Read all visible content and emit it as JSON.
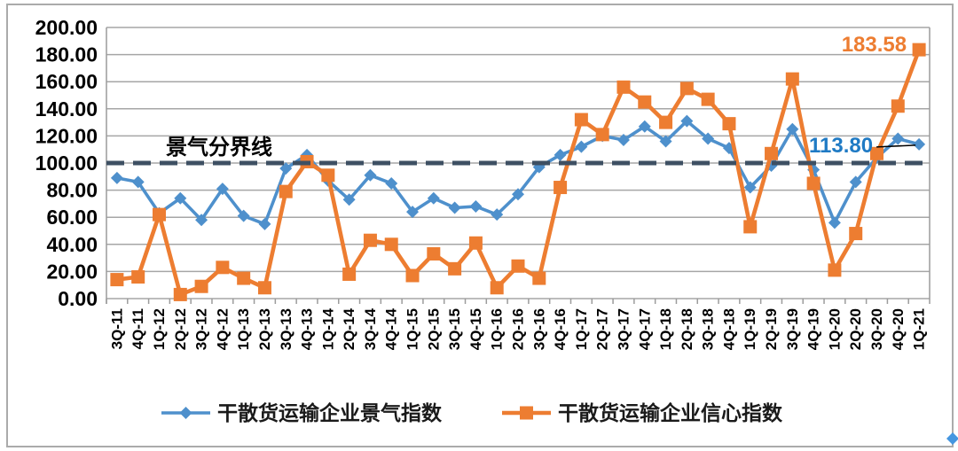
{
  "chart_data": {
    "type": "line",
    "title": "",
    "xlabel": "",
    "ylabel": "",
    "ylim": [
      0,
      200
    ],
    "ytick_step": 20,
    "ytick_labels": [
      "0.00",
      "20.00",
      "40.00",
      "60.00",
      "80.00",
      "100.00",
      "120.00",
      "140.00",
      "160.00",
      "180.00",
      "200.00"
    ],
    "grid": true,
    "legend_position": "bottom",
    "categories": [
      "3Q-11",
      "4Q-11",
      "1Q-12",
      "2Q-12",
      "3Q-12",
      "4Q-12",
      "1Q-13",
      "2Q-13",
      "3Q-13",
      "4Q-13",
      "1Q-14",
      "2Q-14",
      "3Q-14",
      "4Q-14",
      "1Q-15",
      "2Q-15",
      "3Q-15",
      "4Q-15",
      "1Q-16",
      "2Q-16",
      "3Q-16",
      "4Q-16",
      "1Q-17",
      "2Q-17",
      "3Q-17",
      "4Q-17",
      "1Q-18",
      "2Q-18",
      "3Q-18",
      "4Q-18",
      "1Q-19",
      "2Q-19",
      "3Q-19",
      "4Q-19",
      "1Q-20",
      "2Q-20",
      "3Q-20",
      "4Q-20",
      "1Q-21"
    ],
    "series": [
      {
        "name": "干散货运输企业景气指数",
        "color": "#4E90CC",
        "marker": "diamond",
        "values": [
          89,
          86,
          63,
          74,
          58,
          81,
          61,
          55,
          96,
          106,
          87,
          73,
          91,
          85,
          64,
          74,
          67,
          68,
          62,
          77,
          97,
          106,
          112,
          120,
          117,
          127,
          116,
          131,
          118,
          111,
          82,
          98,
          125,
          95,
          56,
          86,
          104,
          118,
          113.8
        ]
      },
      {
        "name": "干散货运输企业信心指数",
        "color": "#ED7D31",
        "marker": "square",
        "values": [
          14,
          16,
          62,
          3,
          9,
          23,
          15,
          8,
          79,
          101,
          91,
          18,
          43,
          40,
          17,
          33,
          22,
          41,
          8,
          24,
          15,
          82,
          132,
          121,
          156,
          145,
          130,
          155,
          147,
          129,
          53,
          107,
          162,
          85,
          21,
          48,
          107,
          142,
          183.58
        ]
      }
    ],
    "reference_line": {
      "value": 100,
      "label": "景气分界线",
      "color": "#3E5063",
      "style": "dashed"
    },
    "annotations": [
      {
        "text": "183.58",
        "color": "#ED7D31",
        "series": 1,
        "point_index": 38,
        "value": 183.58
      },
      {
        "text": "113.80",
        "color": "#1F7AC4",
        "series": 0,
        "point_index": 38,
        "value": 113.8,
        "leader_line": true
      }
    ],
    "colors": {
      "gridline": "#A6A6A6",
      "axis": "#9C9C9C",
      "tick_label": "#000000",
      "frame_border": "#ABABAB",
      "leader_line": "#000000",
      "corner_handle": "#4596E0"
    }
  }
}
